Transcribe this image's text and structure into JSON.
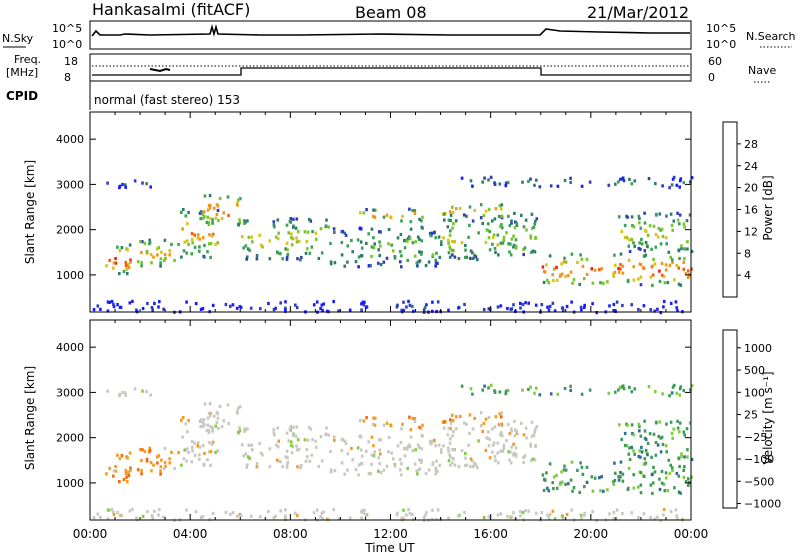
{
  "header": {
    "station": "Hankasalmi (fitACF)",
    "beam": "Beam 08",
    "date": "21/Mar/2012"
  },
  "aux": {
    "nsky_label": "N.Sky",
    "nsearch_label": "N.Search",
    "noise_ticks": [
      "10^5",
      "10^0"
    ],
    "freq_label_1": "Freq.",
    "freq_label_2": "[MHz]",
    "freq_ticks": [
      "18",
      "8"
    ],
    "nave_label": "Nave",
    "nave_ticks": [
      "60",
      "0"
    ],
    "cpid_label": "CPID",
    "cpid_text": "normal (fast stereo) 153"
  },
  "chart_data": [
    {
      "type": "heatmap",
      "name": "power",
      "ylabel": "Slant Range [km]",
      "xlabel": "Time UT",
      "x_ticks": [
        "00:00",
        "04:00",
        "08:00",
        "12:00",
        "16:00",
        "20:00",
        "00:00"
      ],
      "xlim_hours": [
        0,
        24
      ],
      "ylim_km": [
        180,
        4600
      ],
      "y_ticks": [
        1000,
        2000,
        3000,
        4000
      ],
      "colorbar_label": "Power [dB]",
      "colorbar_ticks": [
        "4",
        "8",
        "12",
        "16",
        "20",
        "24",
        "28"
      ],
      "colorbar_range_db": [
        0,
        32
      ],
      "colors": [
        "#1a1aff",
        "#2d3dbb",
        "#2e7a6e",
        "#3aa053",
        "#77c62a",
        "#d9c21a",
        "#f2941c",
        "#f06010",
        "#e82010"
      ]
    },
    {
      "type": "heatmap",
      "name": "velocity",
      "ylabel": "Slant Range [km]",
      "xlabel": "Time UT",
      "x_ticks": [
        "00:00",
        "04:00",
        "08:00",
        "12:00",
        "16:00",
        "20:00",
        "00:00"
      ],
      "xlim_hours": [
        0,
        24
      ],
      "ylim_km": [
        180,
        4600
      ],
      "y_ticks": [
        1000,
        2000,
        3000,
        4000
      ],
      "colorbar_label": "Velocity [m s⁻¹]",
      "colorbar_ticks": [
        "1000",
        "500",
        "100",
        "25",
        "−25",
        "−100",
        "−500",
        "−1000"
      ],
      "colors": [
        "#2b47c2",
        "#2c6f8e",
        "#3c9a55",
        "#7fcd3c",
        "#c8c8c0",
        "#f59a20",
        "#f26a10",
        "#e82015"
      ]
    }
  ]
}
